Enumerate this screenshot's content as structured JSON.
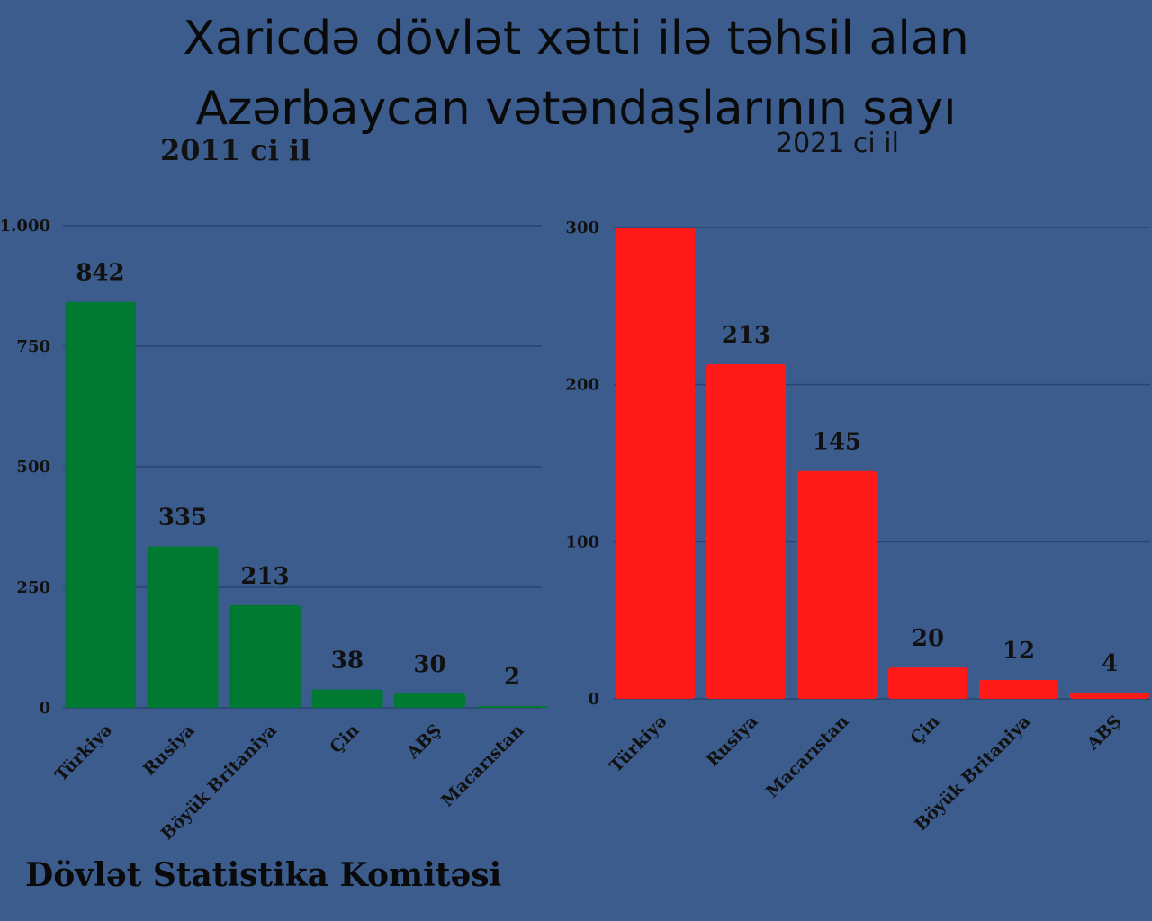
{
  "title_line1": "Xaricdə dövlət xətti ilə təhsil alan",
  "title_line2": "Azərbaycan vətəndaşlarının sayı",
  "footer": "Dövlət Statistika Komitəsi",
  "chart_data": [
    {
      "type": "bar",
      "title": "2011 ci il",
      "categories": [
        "Türkiyə",
        "Rusiya",
        "Böyük Britaniya",
        "Çin",
        "ABŞ",
        "Macarıstan"
      ],
      "values": [
        842,
        335,
        213,
        38,
        30,
        2
      ],
      "data_labels": [
        "842",
        "335",
        "213",
        "38",
        "30",
        "2"
      ],
      "ylim": [
        0,
        1000
      ],
      "yticks": [
        0,
        250,
        500,
        750,
        1000
      ],
      "ytick_labels": [
        "0",
        "250",
        "500",
        "750",
        "1.000"
      ],
      "grid": true,
      "bar_color": "#007a33"
    },
    {
      "type": "bar",
      "title": "2021 ci il",
      "categories": [
        "Türkiyə",
        "Rusiya",
        "Macarıstan",
        "Çin",
        "Böyük Britaniya",
        "ABŞ"
      ],
      "values": [
        300,
        213,
        145,
        20,
        12,
        4
      ],
      "data_labels": [
        "",
        "213",
        "145",
        "20",
        "12",
        "4"
      ],
      "ylim": [
        0,
        300
      ],
      "yticks": [
        0,
        100,
        200,
        300
      ],
      "ytick_labels": [
        "0",
        "100",
        "200",
        "300"
      ],
      "grid": true,
      "bar_color": "#ff1a1a"
    }
  ]
}
